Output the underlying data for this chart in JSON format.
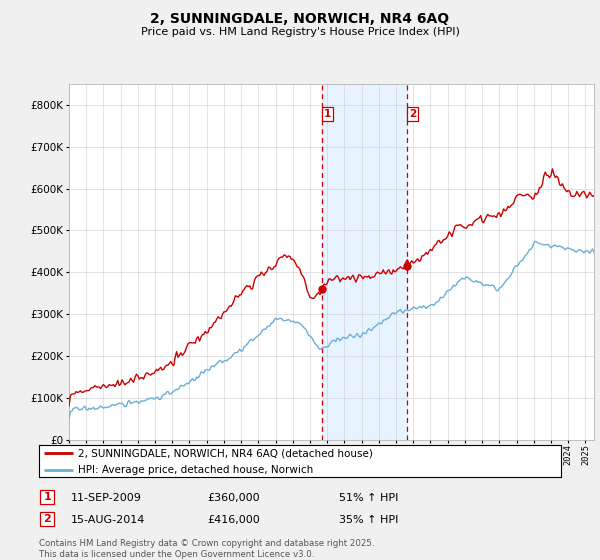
{
  "title": "2, SUNNINGDALE, NORWICH, NR4 6AQ",
  "subtitle": "Price paid vs. HM Land Registry's House Price Index (HPI)",
  "legend_line1": "2, SUNNINGDALE, NORWICH, NR4 6AQ (detached house)",
  "legend_line2": "HPI: Average price, detached house, Norwich",
  "footnote": "Contains HM Land Registry data © Crown copyright and database right 2025.\nThis data is licensed under the Open Government Licence v3.0.",
  "sale1_label": "1",
  "sale1_date": "11-SEP-2009",
  "sale1_price": "£360,000",
  "sale1_hpi": "51% ↑ HPI",
  "sale2_label": "2",
  "sale2_date": "15-AUG-2014",
  "sale2_price": "£416,000",
  "sale2_hpi": "35% ↑ HPI",
  "sale1_year": 2009.71,
  "sale2_year": 2014.62,
  "sale1_price_val": 360000,
  "sale2_price_val": 416000,
  "hpi_line_color": "#6baed6",
  "price_line_color": "#cc0000",
  "shading_color": "#ddeeff",
  "background_color": "#f0f0f0",
  "plot_bg_color": "#ffffff",
  "ylim": [
    0,
    850000
  ],
  "xmin": 1995,
  "xmax": 2025.5,
  "noise_seed": 17
}
